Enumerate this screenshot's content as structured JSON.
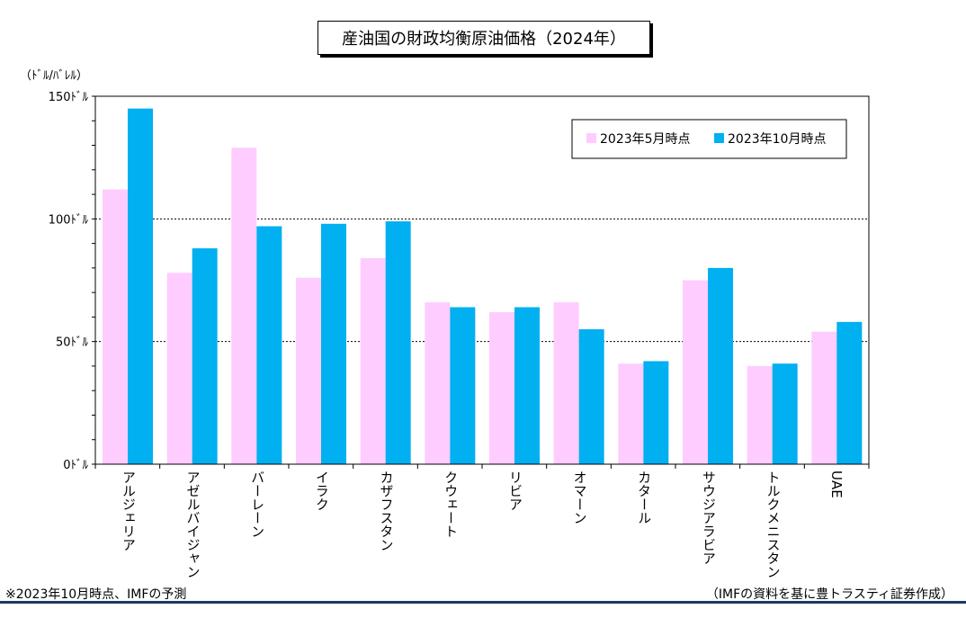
{
  "chart_data": {
    "type": "bar",
    "title": "産油国の財政均衡原油価格（2024年）",
    "ylabel": "（ﾄﾞﾙ/ﾊﾞﾚﾙ）",
    "ylim": [
      0,
      150
    ],
    "yticks": [
      {
        "value": 0,
        "label": "0ﾄﾞﾙ"
      },
      {
        "value": 50,
        "label": "50ﾄﾞﾙ"
      },
      {
        "value": 100,
        "label": "100ﾄﾞﾙ"
      },
      {
        "value": 150,
        "label": "150ﾄﾞﾙ"
      }
    ],
    "gridlines": [
      50,
      100
    ],
    "categories": [
      "アルジェリア",
      "アゼルバイジャン",
      "バーレーン",
      "イラク",
      "カザフスタン",
      "クウェート",
      "リビア",
      "オマーン",
      "カタール",
      "サウジアラビア",
      "トルクメニスタン",
      "UAE"
    ],
    "series": [
      {
        "name": "2023年5月時点",
        "color": "#ffccff",
        "values": [
          112,
          78,
          129,
          76,
          84,
          66,
          62,
          66,
          41,
          75,
          40,
          54
        ]
      },
      {
        "name": "2023年10月時点",
        "color": "#00b0f0",
        "values": [
          145,
          88,
          97,
          98,
          99,
          64,
          64,
          55,
          42,
          80,
          41,
          58
        ]
      }
    ],
    "legend": "top-right"
  },
  "footnote_left": "※2023年10月時点、IMFの予測",
  "footnote_right": "（IMFの資料を基に豊トラスティ証券作成）"
}
